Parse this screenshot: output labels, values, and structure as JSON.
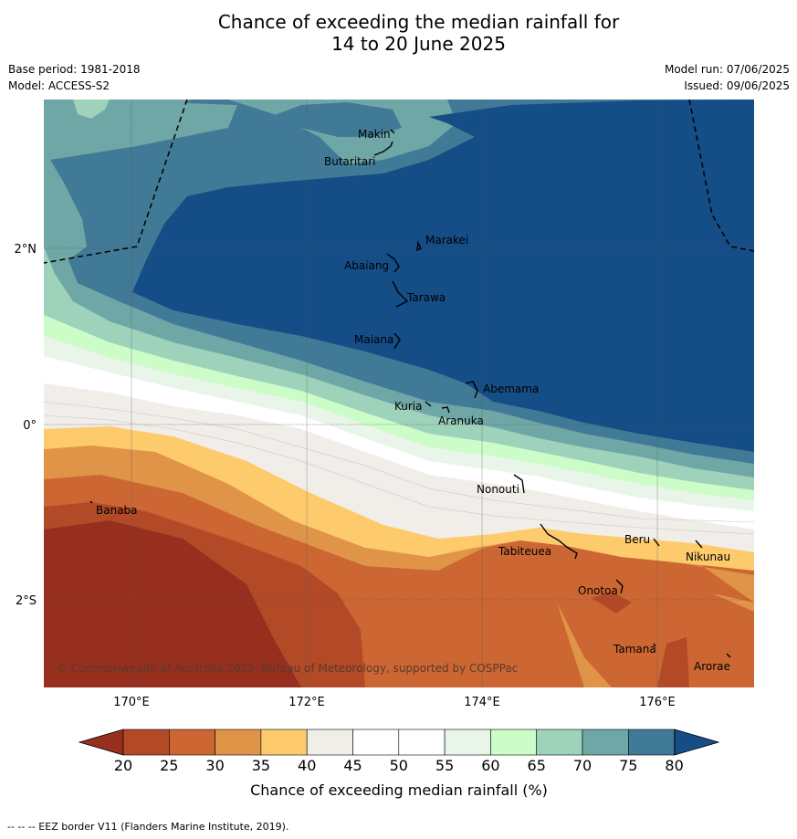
{
  "title_line1": "Chance of exceeding the median rainfall for",
  "title_line2": "14 to 20 June 2025",
  "meta": {
    "base_period": "Base period: 1981-2018",
    "model": "Model: ACCESS-S2",
    "model_run": "Model run: 07/06/2025",
    "issued": "Issued: 09/06/2025"
  },
  "axes": {
    "lat_labels": [
      "2°N",
      "0°",
      "2°S"
    ],
    "lon_labels": [
      "170°E",
      "172°E",
      "174°E",
      "176°E"
    ]
  },
  "places": [
    "Makin",
    "Butaritari",
    "Marakei",
    "Abaiang",
    "Tarawa",
    "Maiana",
    "Abemama",
    "Kuria",
    "Aranuka",
    "Nonouti",
    "Banaba",
    "Beru",
    "Tabiteuea",
    "Nikunau",
    "Onotoa",
    "Tamana",
    "Arorae"
  ],
  "copyright": "© Commonwealth of Australia 2025, Bureau of Meteorology, supported by COSPPac",
  "colorbar": {
    "ticks": [
      "20",
      "25",
      "30",
      "35",
      "40",
      "45",
      "50",
      "55",
      "60",
      "65",
      "70",
      "75",
      "80"
    ],
    "label": "Chance of exceeding median rainfall (%)",
    "colors": [
      "#972f1f",
      "#b24a27",
      "#cc6734",
      "#e09448",
      "#fdcb6c",
      "#f1ede8",
      "#ffffff",
      "#ffffff",
      "#eaf5e9",
      "#ccfcc8",
      "#9ed2bb",
      "#6fa6a6",
      "#417a97",
      "#154d86"
    ]
  },
  "footnote": "--  --  -- EEZ border V11 (Flanders Marine Institute, 2019)."
}
